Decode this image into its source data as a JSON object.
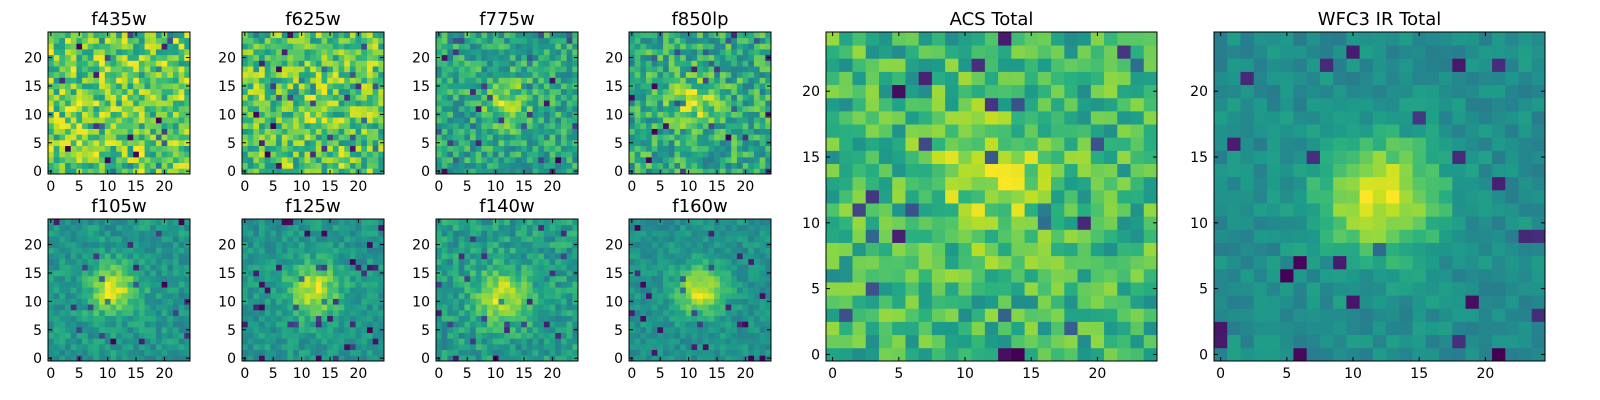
{
  "chart_data": [
    {
      "type": "heatmap",
      "title": "f435w",
      "xlabel": "",
      "ylabel": "",
      "xlim": [
        -0.5,
        24.5
      ],
      "ylim": [
        -0.5,
        24.5
      ],
      "xticks": [
        0,
        5,
        10,
        15,
        20
      ],
      "yticks": [
        0,
        5,
        10,
        15,
        20
      ],
      "grid": 25,
      "origin": "lower",
      "colormap": "viridis",
      "peak": [
        12,
        12
      ],
      "peak_strength": 0.0,
      "peak_sigma": 3.5,
      "noise": 0.55,
      "base": 0.72,
      "seed": 11
    },
    {
      "type": "heatmap",
      "title": "f625w",
      "xlabel": "",
      "ylabel": "",
      "xlim": [
        -0.5,
        24.5
      ],
      "ylim": [
        -0.5,
        24.5
      ],
      "xticks": [
        0,
        5,
        10,
        15,
        20
      ],
      "yticks": [
        0,
        5,
        10,
        15,
        20
      ],
      "grid": 25,
      "origin": "lower",
      "colormap": "viridis",
      "peak": [
        12,
        12
      ],
      "peak_strength": 0.05,
      "peak_sigma": 3.5,
      "noise": 0.55,
      "base": 0.7,
      "seed": 23
    },
    {
      "type": "heatmap",
      "title": "f775w",
      "xlabel": "",
      "ylabel": "",
      "xlim": [
        -0.5,
        24.5
      ],
      "ylim": [
        -0.5,
        24.5
      ],
      "xticks": [
        0,
        5,
        10,
        15,
        20
      ],
      "yticks": [
        0,
        5,
        10,
        15,
        20
      ],
      "grid": 25,
      "origin": "lower",
      "colormap": "viridis",
      "peak": [
        12,
        12
      ],
      "peak_strength": 0.35,
      "peak_sigma": 3.0,
      "noise": 0.5,
      "base": 0.62,
      "seed": 37
    },
    {
      "type": "heatmap",
      "title": "f850lp",
      "xlabel": "",
      "ylabel": "",
      "xlim": [
        -0.5,
        24.5
      ],
      "ylim": [
        -0.5,
        24.5
      ],
      "xticks": [
        0,
        5,
        10,
        15,
        20
      ],
      "yticks": [
        0,
        5,
        10,
        15,
        20
      ],
      "grid": 25,
      "origin": "lower",
      "colormap": "viridis",
      "peak": [
        11,
        12
      ],
      "peak_strength": 0.3,
      "peak_sigma": 3.0,
      "noise": 0.5,
      "base": 0.6,
      "seed": 41
    },
    {
      "type": "heatmap",
      "title": "f105w",
      "xlabel": "",
      "ylabel": "",
      "xlim": [
        -0.5,
        24.5
      ],
      "ylim": [
        -0.5,
        24.5
      ],
      "xticks": [
        0,
        5,
        10,
        15,
        20
      ],
      "yticks": [
        0,
        5,
        10,
        15,
        20
      ],
      "grid": 25,
      "origin": "lower",
      "colormap": "viridis",
      "peak": [
        11,
        12
      ],
      "peak_strength": 0.55,
      "peak_sigma": 3.0,
      "noise": 0.3,
      "base": 0.5,
      "seed": 53
    },
    {
      "type": "heatmap",
      "title": "f125w",
      "xlabel": "",
      "ylabel": "",
      "xlim": [
        -0.5,
        24.5
      ],
      "ylim": [
        -0.5,
        24.5
      ],
      "xticks": [
        0,
        5,
        10,
        15,
        20
      ],
      "yticks": [
        0,
        5,
        10,
        15,
        20
      ],
      "grid": 25,
      "origin": "lower",
      "colormap": "viridis",
      "peak": [
        12,
        12
      ],
      "peak_strength": 0.55,
      "peak_sigma": 3.2,
      "noise": 0.28,
      "base": 0.45,
      "seed": 67
    },
    {
      "type": "heatmap",
      "title": "f140w",
      "xlabel": "",
      "ylabel": "",
      "xlim": [
        -0.5,
        24.5
      ],
      "ylim": [
        -0.5,
        24.5
      ],
      "xticks": [
        0,
        5,
        10,
        15,
        20
      ],
      "yticks": [
        0,
        5,
        10,
        15,
        20
      ],
      "grid": 25,
      "origin": "lower",
      "colormap": "viridis",
      "peak": [
        11,
        11
      ],
      "peak_strength": 0.5,
      "peak_sigma": 3.2,
      "noise": 0.35,
      "base": 0.52,
      "seed": 79
    },
    {
      "type": "heatmap",
      "title": "f160w",
      "xlabel": "",
      "ylabel": "",
      "xlim": [
        -0.5,
        24.5
      ],
      "ylim": [
        -0.5,
        24.5
      ],
      "xticks": [
        0,
        5,
        10,
        15,
        20
      ],
      "yticks": [
        0,
        5,
        10,
        15,
        20
      ],
      "grid": 25,
      "origin": "lower",
      "colormap": "viridis",
      "peak": [
        12,
        12
      ],
      "peak_strength": 0.6,
      "peak_sigma": 3.0,
      "noise": 0.25,
      "base": 0.35,
      "seed": 83
    },
    {
      "type": "heatmap",
      "title": "ACS Total",
      "xlabel": "",
      "ylabel": "",
      "xlim": [
        -0.5,
        24.5
      ],
      "ylim": [
        -0.5,
        24.5
      ],
      "xticks": [
        0,
        5,
        10,
        15,
        20
      ],
      "yticks": [
        0,
        5,
        10,
        15,
        20
      ],
      "grid": 25,
      "origin": "lower",
      "colormap": "viridis",
      "peak": [
        12,
        13
      ],
      "peak_strength": 0.25,
      "peak_sigma": 3.5,
      "noise": 0.45,
      "base": 0.66,
      "seed": 97
    },
    {
      "type": "heatmap",
      "title": "WFC3 IR Total",
      "xlabel": "",
      "ylabel": "",
      "xlim": [
        -0.5,
        24.5
      ],
      "ylim": [
        -0.5,
        24.5
      ],
      "xticks": [
        0,
        5,
        10,
        15,
        20
      ],
      "yticks": [
        0,
        5,
        10,
        15,
        20
      ],
      "grid": 25,
      "origin": "lower",
      "colormap": "viridis",
      "peak": [
        12,
        12
      ],
      "peak_strength": 0.65,
      "peak_sigma": 3.2,
      "noise": 0.22,
      "base": 0.32,
      "seed": 101
    }
  ]
}
